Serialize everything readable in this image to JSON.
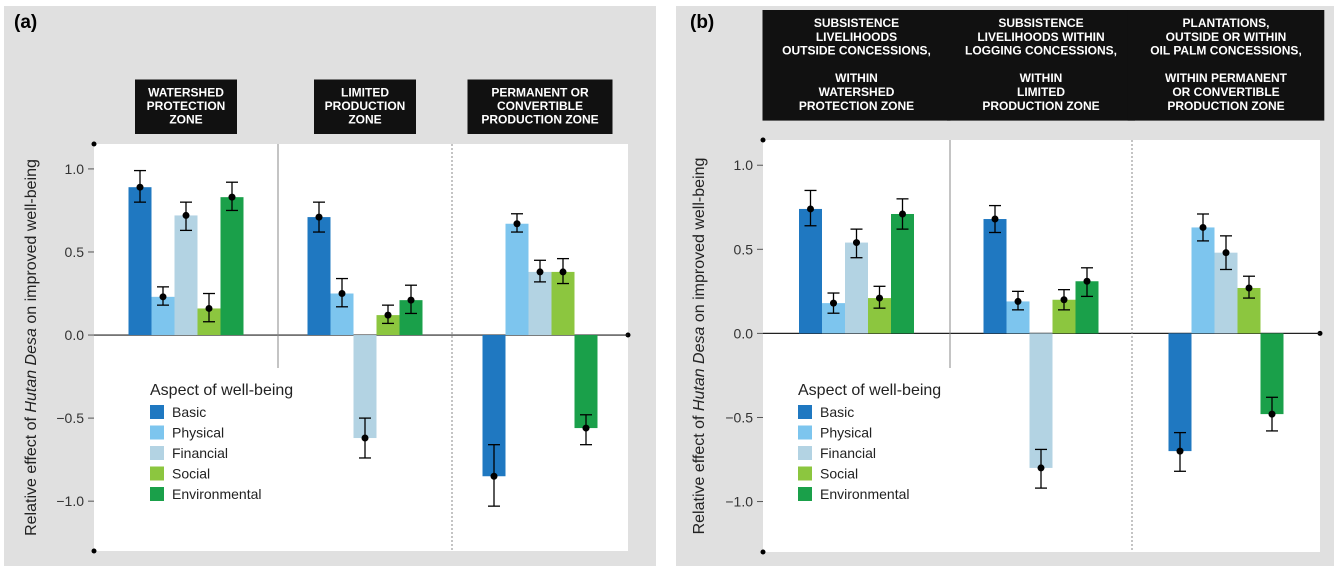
{
  "colors": {
    "panel_bg": "#e0e0e0",
    "plot_bg": "#ffffff",
    "zone_box": "#111111",
    "divider": "#888888",
    "error_bar": "#000000"
  },
  "chart_data": [
    {
      "type": "bar",
      "panel_label": "(a)",
      "ylabel_prefix": "Relative effect of ",
      "ylabel_italic": "Hutan Desa",
      "ylabel_suffix": " on improved well-being",
      "ylim": [
        -1.3,
        1.15
      ],
      "yticks": [
        1.0,
        0.5,
        0.0,
        -0.5,
        -1.0
      ],
      "ytick_labels": [
        "1.0",
        "0.5",
        "0.0",
        "−0.5",
        "−1.0"
      ],
      "legend_title": "Aspect of well-being",
      "legend_placement": "lower-left",
      "categories": [
        {
          "label_lines": [
            "WATERSHED",
            "PROTECTION",
            "ZONE"
          ]
        },
        {
          "label_lines": [
            "LIMITED",
            "PRODUCTION",
            "ZONE"
          ]
        },
        {
          "label_lines": [
            "PERMANENT OR",
            "CONVERTIBLE",
            "PRODUCTION ZONE"
          ]
        }
      ],
      "series": [
        {
          "name": "Basic",
          "color": "#1f78c1",
          "values": [
            0.89,
            0.71,
            -0.85
          ],
          "err_low": [
            0.8,
            0.62,
            -1.03
          ],
          "err_high": [
            0.99,
            0.8,
            -0.66
          ]
        },
        {
          "name": "Physical",
          "color": "#7dc5ee",
          "values": [
            0.23,
            0.25,
            0.67
          ],
          "err_low": [
            0.18,
            0.17,
            0.62
          ],
          "err_high": [
            0.29,
            0.34,
            0.73
          ]
        },
        {
          "name": "Financial",
          "color": "#b3d3e3",
          "values": [
            0.72,
            -0.62,
            0.38
          ],
          "err_low": [
            0.63,
            -0.74,
            0.32
          ],
          "err_high": [
            0.8,
            -0.5,
            0.45
          ]
        },
        {
          "name": "Social",
          "color": "#8cc63f",
          "values": [
            0.16,
            0.12,
            0.38
          ],
          "err_low": [
            0.08,
            0.07,
            0.31
          ],
          "err_high": [
            0.25,
            0.18,
            0.46
          ]
        },
        {
          "name": "Environmental",
          "color": "#1aa04a",
          "values": [
            0.83,
            0.21,
            -0.56
          ],
          "err_low": [
            0.75,
            0.13,
            -0.66
          ],
          "err_high": [
            0.92,
            0.3,
            -0.48
          ]
        }
      ]
    },
    {
      "type": "bar",
      "panel_label": "(b)",
      "ylabel_prefix": "Relative effect of ",
      "ylabel_italic": "Hutan Desa",
      "ylabel_suffix": " on improved well-being",
      "ylim": [
        -1.3,
        1.15
      ],
      "yticks": [
        1.0,
        0.5,
        0.0,
        -0.5,
        -1.0
      ],
      "ytick_labels": [
        "1.0",
        "0.5",
        "0.0",
        "−0.5",
        "−1.0"
      ],
      "legend_title": "Aspect of well-being",
      "legend_placement": "lower-left",
      "categories": [
        {
          "label_lines": [
            "SUBSISTENCE",
            "LIVELIHOODS",
            "OUTSIDE CONCESSIONS,",
            "",
            "WITHIN",
            "WATERSHED",
            "PROTECTION ZONE"
          ]
        },
        {
          "label_lines": [
            "SUBSISTENCE",
            "LIVELIHOODS WITHIN",
            "LOGGING CONCESSIONS,",
            "",
            "WITHIN",
            "LIMITED",
            "PRODUCTION ZONE"
          ]
        },
        {
          "label_lines": [
            "PLANTATIONS,",
            "OUTSIDE OR WITHIN",
            "OIL PALM CONCESSIONS,",
            "",
            "WITHIN PERMANENT",
            "OR CONVERTIBLE",
            "PRODUCTION ZONE"
          ]
        }
      ],
      "series": [
        {
          "name": "Basic",
          "color": "#1f78c1",
          "values": [
            0.74,
            0.68,
            -0.7
          ],
          "err_low": [
            0.64,
            0.6,
            -0.82
          ],
          "err_high": [
            0.85,
            0.76,
            -0.59
          ]
        },
        {
          "name": "Physical",
          "color": "#7dc5ee",
          "values": [
            0.18,
            0.19,
            0.63
          ],
          "err_low": [
            0.12,
            0.14,
            0.55
          ],
          "err_high": [
            0.24,
            0.25,
            0.71
          ]
        },
        {
          "name": "Financial",
          "color": "#b3d3e3",
          "values": [
            0.54,
            -0.8,
            0.48
          ],
          "err_low": [
            0.45,
            -0.92,
            0.38
          ],
          "err_high": [
            0.62,
            -0.69,
            0.58
          ]
        },
        {
          "name": "Social",
          "color": "#8cc63f",
          "values": [
            0.21,
            0.2,
            0.27
          ],
          "err_low": [
            0.15,
            0.14,
            0.21
          ],
          "err_high": [
            0.28,
            0.26,
            0.34
          ]
        },
        {
          "name": "Environmental",
          "color": "#1aa04a",
          "values": [
            0.71,
            0.31,
            -0.48
          ],
          "err_low": [
            0.62,
            0.22,
            -0.58
          ],
          "err_high": [
            0.8,
            0.39,
            -0.38
          ]
        }
      ]
    }
  ]
}
